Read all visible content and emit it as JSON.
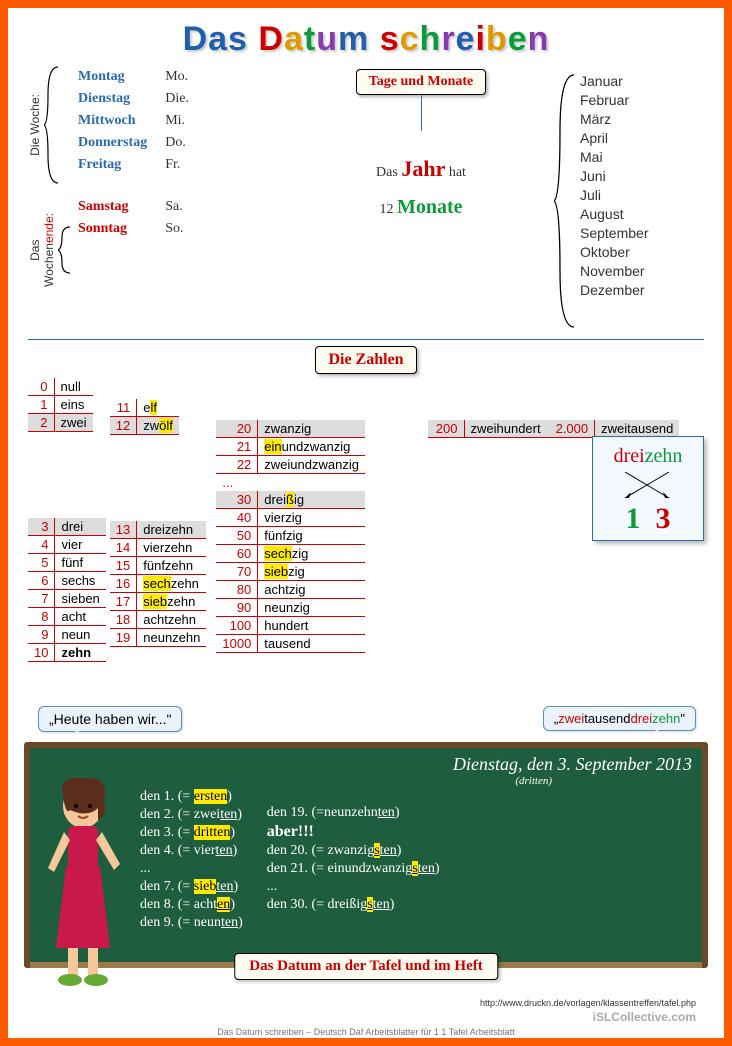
{
  "title": {
    "words": [
      {
        "text": "Das",
        "color": "#1f5fb0"
      },
      {
        "text": " ",
        "color": "#000"
      },
      {
        "text": "D",
        "color": "#c00"
      },
      {
        "text": "a",
        "color": "#e09a00"
      },
      {
        "text": "t",
        "color": "#0a9b3a"
      },
      {
        "text": "u",
        "color": "#8a3ab0"
      },
      {
        "text": "m",
        "color": "#1f5fb0"
      },
      {
        "text": " ",
        "color": "#000"
      },
      {
        "text": "s",
        "color": "#c00"
      },
      {
        "text": "c",
        "color": "#e09a00"
      },
      {
        "text": "h",
        "color": "#0a9b3a"
      },
      {
        "text": "r",
        "color": "#8a3ab0"
      },
      {
        "text": "e",
        "color": "#1f5fb0"
      },
      {
        "text": "i",
        "color": "#c00"
      },
      {
        "text": "b",
        "color": "#e09a00"
      },
      {
        "text": "e",
        "color": "#0a9b3a"
      },
      {
        "text": "n",
        "color": "#8a3ab0"
      }
    ]
  },
  "labels": {
    "woche_label": "Die Woche:",
    "wochenende_label_pre": "Das\nWochen",
    "wochenende_label_suf": "ende:",
    "tage_monate": "Tage und Monate",
    "jahr_pre": "Das ",
    "jahr_word": "Jahr",
    "jahr_post": " hat",
    "jahr_num": "12 ",
    "jahr_monate": "Monate",
    "zahlen": "Die Zahlen",
    "heute": "„Heute haben wir...\"",
    "bubble_right_pre": "„",
    "bubble_right_zwei": "zwei",
    "bubble_right_tausend": "tausend",
    "bubble_right_drei": "drei",
    "bubble_right_zehn": "zehn",
    "bubble_right_suf": "\"",
    "board_date": "Dienstag, den 3. September 2013",
    "board_dritten": "(dritten)",
    "aber": "aber!!!",
    "board_label": "Das Datum an der Tafel und im Heft",
    "foot1": "http://www.druckn.de/vorlagen/klassentreffen/tafel.php",
    "foot2": "iSLCollective.com",
    "caption": "Das Datum schreiben – Deutsch Daf Arbeitsblatter für 1 1 Tafel Arbeitsblatt"
  },
  "weekdays": [
    {
      "name": "Montag",
      "abbr": "Mo.",
      "weekend": false
    },
    {
      "name": "Dienstag",
      "abbr": "Die.",
      "weekend": false
    },
    {
      "name": "Mittwoch",
      "abbr": "Mi.",
      "weekend": false
    },
    {
      "name": "Donnerstag",
      "abbr": "Do.",
      "weekend": false
    },
    {
      "name": "Freitag",
      "abbr": "Fr.",
      "weekend": false
    }
  ],
  "weekend": [
    {
      "name": "Samstag",
      "abbr": "Sa."
    },
    {
      "name": "Sonntag",
      "abbr": "So."
    }
  ],
  "months": [
    "Januar",
    "Februar",
    "März",
    "April",
    "Mai",
    "Juni",
    "Juli",
    "August",
    "September",
    "Oktober",
    "November",
    "Dezember"
  ],
  "numbers_0_10": [
    {
      "n": "0",
      "w": "null",
      "shade": false
    },
    {
      "n": "1",
      "w": "eins",
      "shade": false
    },
    {
      "n": "2",
      "w": "zwei",
      "shade": true
    }
  ],
  "numbers_11_12": [
    {
      "n": "11",
      "w": "elf",
      "hl": "lf"
    },
    {
      "n": "12",
      "w": "zwölf",
      "hl": "ölf",
      "shade": true
    }
  ],
  "numbers_3_10": [
    {
      "n": "3",
      "w": "drei",
      "shade": true
    },
    {
      "n": "4",
      "w": "vier"
    },
    {
      "n": "5",
      "w": "fünf"
    },
    {
      "n": "6",
      "w": "sechs"
    },
    {
      "n": "7",
      "w": "sieben"
    },
    {
      "n": "8",
      "w": "acht"
    },
    {
      "n": "9",
      "w": "neun"
    },
    {
      "n": "10",
      "w": "zehn",
      "bold": true
    }
  ],
  "numbers_13_19": [
    {
      "n": "13",
      "w": "dreizehn",
      "shade": true
    },
    {
      "n": "14",
      "w": "vierzehn"
    },
    {
      "n": "15",
      "w": "fünfzehn"
    },
    {
      "n": "16",
      "w_pre": "",
      "hl": "sech",
      "w_post": "zehn"
    },
    {
      "n": "17",
      "w_pre": "",
      "hl": "sieb",
      "w_post": "zehn"
    },
    {
      "n": "18",
      "w": "achtzehn"
    },
    {
      "n": "19",
      "w": "neunzehn"
    }
  ],
  "numbers_tens": [
    {
      "n": "20",
      "w": "zwanzig",
      "shade": true
    },
    {
      "n": "21",
      "w_pre": "",
      "hl": "ein",
      "w_post": "undzwanzig"
    },
    {
      "n": "22",
      "w": "zweiundzwanzig"
    },
    {
      "n": "...",
      "w": "",
      "ellipsis": true
    },
    {
      "n": "30",
      "w_pre": "drei",
      "hl": "ß",
      "w_post": "ig",
      "shade": true
    },
    {
      "n": "40",
      "w": "vierzig"
    },
    {
      "n": "50",
      "w": "fünfzig"
    },
    {
      "n": "60",
      "w_pre": "",
      "hl": "sech",
      "w_post": "zig"
    },
    {
      "n": "70",
      "w_pre": "",
      "hl": "sieb",
      "w_post": "zig"
    },
    {
      "n": "80",
      "w": "achtzig"
    },
    {
      "n": "90",
      "w": "neunzig"
    },
    {
      "n": "100",
      "w": "hundert"
    },
    {
      "n": "1000",
      "w": "tausend"
    }
  ],
  "numbers_big": [
    {
      "n": "200",
      "w": "zweihundert"
    },
    {
      "n": "2.000",
      "w": "zweitausend"
    }
  ],
  "dreizehn_box": {
    "drei": "drei",
    "drei_color": "#c00",
    "zehn": "zehn",
    "zehn_color": "#0a9b3a",
    "one": "1",
    "one_color": "#0a9b3a",
    "three": "3",
    "three_color": "#c00"
  },
  "ordinals_left": [
    {
      "pre": "den 1. (= ",
      "hl": "ersten",
      "post": ")"
    },
    {
      "pre": "den 2. (= zwei",
      "u": "ten",
      "post": ")"
    },
    {
      "pre": "den 3. (= ",
      "hl": "dritten",
      "post": ")"
    },
    {
      "pre": "den 4. (= vier",
      "u": "ten",
      "post": ")"
    },
    {
      "pre": "...",
      "plain": true
    },
    {
      "pre": "den 7. (= ",
      "hl": "sieb",
      "u": "ten",
      "post": ")"
    },
    {
      "pre": "den 8. (= acht",
      "hlu": "en",
      "post": ")"
    },
    {
      "pre": "den 9. (= neun",
      "u": "ten",
      "post": ")"
    }
  ],
  "ordinals_right": [
    {
      "pre": "den 19. (=neunzehn",
      "u": "ten",
      "post": ")"
    },
    {
      "aber": true
    },
    {
      "pre": "den 20. (= zwanzig",
      "hly": "s",
      "u": "ten",
      "post": ")"
    },
    {
      "pre": "den 21. (= einundzwanzig",
      "hly": "s",
      "u": "ten",
      "post": ")"
    },
    {
      "pre": "...",
      "plain": true
    },
    {
      "pre": "den 30. (= dreißig",
      "hly": "s",
      "u": "ten",
      "post": ")"
    }
  ],
  "colors": {
    "border": "#ff5a00",
    "weekday": "#2a6bb0",
    "weekend": "#c00",
    "green": "#0a9b3a",
    "highlight": "#ffeb00",
    "board": "#1e5e3e",
    "board_frame": "#6a4a2a"
  }
}
